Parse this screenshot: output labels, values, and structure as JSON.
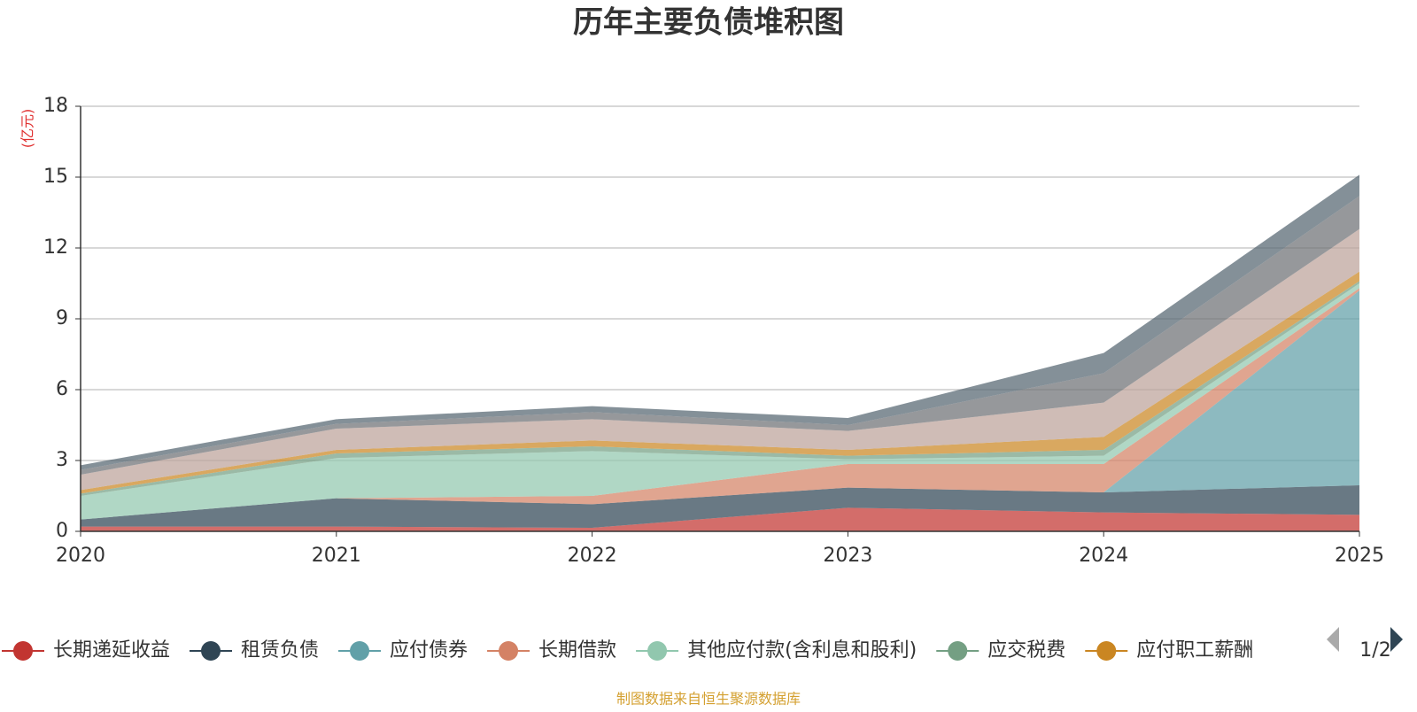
{
  "chart_data": {
    "type": "stacked-area",
    "title": "历年主要负债堆积图",
    "y_label": "(亿元)",
    "categories": [
      "2020",
      "2021",
      "2022",
      "2023",
      "2024",
      "2025"
    ],
    "ylim": [
      0,
      18
    ],
    "yticks": [
      0,
      3,
      6,
      9,
      12,
      15,
      18
    ],
    "grid": true,
    "series": [
      {
        "name": "长期递延收益",
        "color": "#c23531",
        "values": [
          0.2,
          0.2,
          0.15,
          1.0,
          0.8,
          0.7
        ]
      },
      {
        "name": "租赁负债",
        "color": "#2f4554",
        "values": [
          0.3,
          1.2,
          1.0,
          0.85,
          0.85,
          1.25
        ]
      },
      {
        "name": "应付债券",
        "color": "#61a0a8",
        "values": [
          0,
          0,
          0,
          0,
          0,
          8.25
        ]
      },
      {
        "name": "长期借款",
        "color": "#d48265",
        "values": [
          0,
          0,
          0.35,
          1.0,
          1.2,
          0.1
        ]
      },
      {
        "name": "其他应付款(含利息和股利)",
        "color": "#91c7ae",
        "values": [
          1.0,
          1.7,
          1.9,
          0.2,
          0.35,
          0.2
        ]
      },
      {
        "name": "应交税费",
        "color": "#749f83",
        "values": [
          0.1,
          0.2,
          0.2,
          0.15,
          0.25,
          0.1
        ]
      },
      {
        "name": "应付职工薪酬",
        "color": "#ca8622",
        "values": [
          0.15,
          0.15,
          0.25,
          0.25,
          0.55,
          0.4
        ]
      },
      {
        "color": "#bda29a",
        "values": [
          0.65,
          0.9,
          0.9,
          0.8,
          1.45,
          1.8
        ]
      },
      {
        "color": "#6e7074",
        "values": [
          0.2,
          0.2,
          0.3,
          0.25,
          1.25,
          1.4
        ]
      },
      {
        "color": "#546570",
        "values": [
          0.2,
          0.2,
          0.25,
          0.3,
          0.85,
          0.9
        ]
      }
    ],
    "legend_page": "1/2",
    "source": "制图数据来自恒生聚源数据库"
  }
}
